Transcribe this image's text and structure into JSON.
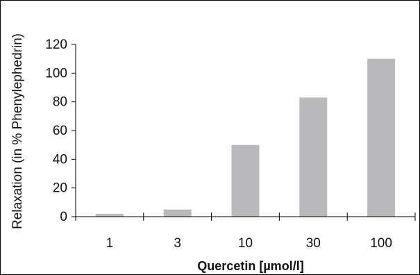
{
  "chart_data": {
    "type": "bar",
    "title": "",
    "xlabel": "Quercetin [µmol/l]",
    "ylabel": "Relaxation (in % Phenylephedrin)",
    "categories": [
      "1",
      "3",
      "10",
      "30",
      "100"
    ],
    "values": [
      2,
      5,
      50,
      83,
      110
    ],
    "ylim": [
      0,
      120
    ],
    "yticks": [
      0,
      20,
      40,
      60,
      80,
      100,
      120
    ],
    "grid": false,
    "legend": "none",
    "colors": {
      "bar": "#b9b9bc",
      "axis": "#000000",
      "text": "#111111"
    }
  }
}
